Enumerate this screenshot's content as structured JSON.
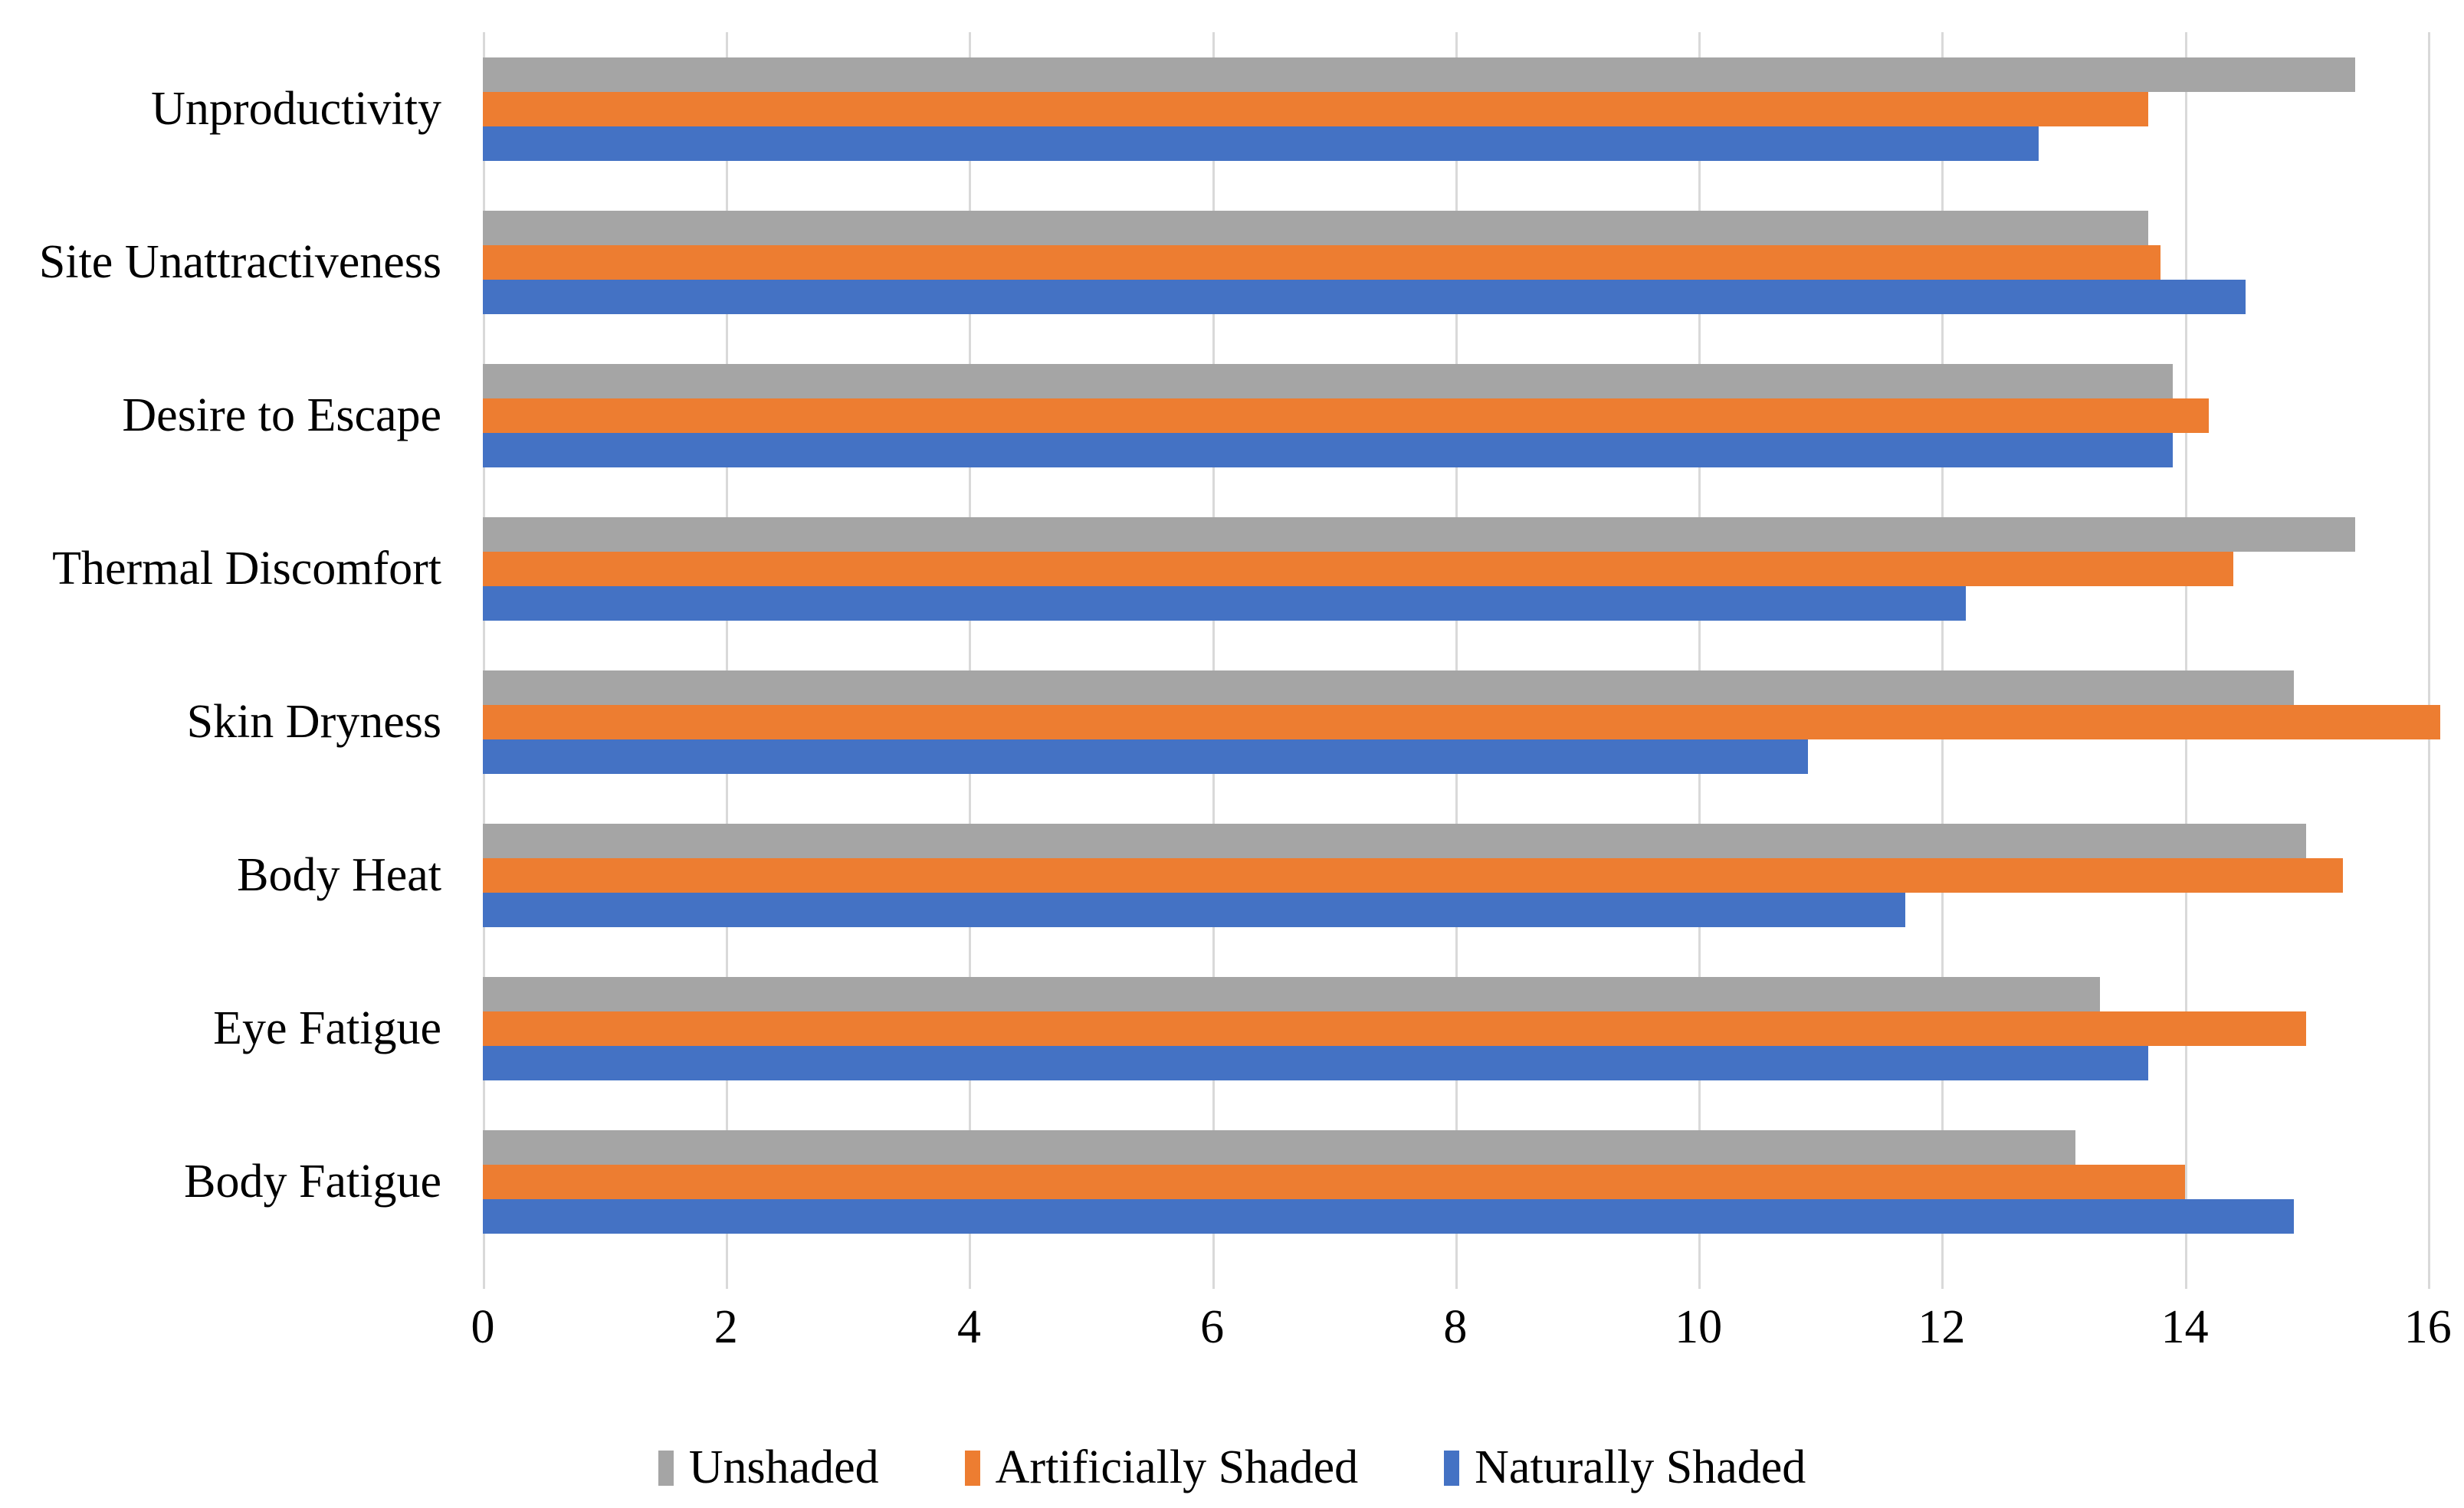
{
  "chart_data": {
    "type": "bar",
    "orientation": "horizontal",
    "title": "",
    "xlabel": "",
    "ylabel": "",
    "categories": [
      "Unproductivity",
      "Site Unattractiveness",
      "Desire to Escape",
      "Thermal Discomfort",
      "Skin Dryness",
      "Body Heat",
      "Eye Fatigue",
      "Body Fatigue"
    ],
    "series": [
      {
        "name": "Unshaded",
        "color": "#A5A5A5",
        "values": [
          15.4,
          13.7,
          13.9,
          15.4,
          14.9,
          15.0,
          13.3,
          13.1
        ]
      },
      {
        "name": "Artificially Shaded",
        "color": "#ED7D31",
        "values": [
          13.7,
          13.8,
          14.2,
          14.4,
          16.1,
          15.3,
          15.0,
          14.0
        ]
      },
      {
        "name": "Naturally Shaded",
        "color": "#4472C4",
        "values": [
          12.8,
          14.5,
          13.9,
          12.2,
          10.9,
          11.7,
          13.7,
          14.9
        ]
      }
    ],
    "x_ticks": [
      0,
      2,
      4,
      6,
      8,
      10,
      12,
      14,
      16
    ],
    "xlim": [
      0,
      16
    ],
    "grid": "vertical",
    "gridline_color": "#D9D9D9",
    "legend_position": "bottom",
    "legend": [
      "Unshaded",
      "Artificially Shaded",
      "Naturally Shaded"
    ],
    "background": "#FFFFFF",
    "text_color": "#000000"
  }
}
